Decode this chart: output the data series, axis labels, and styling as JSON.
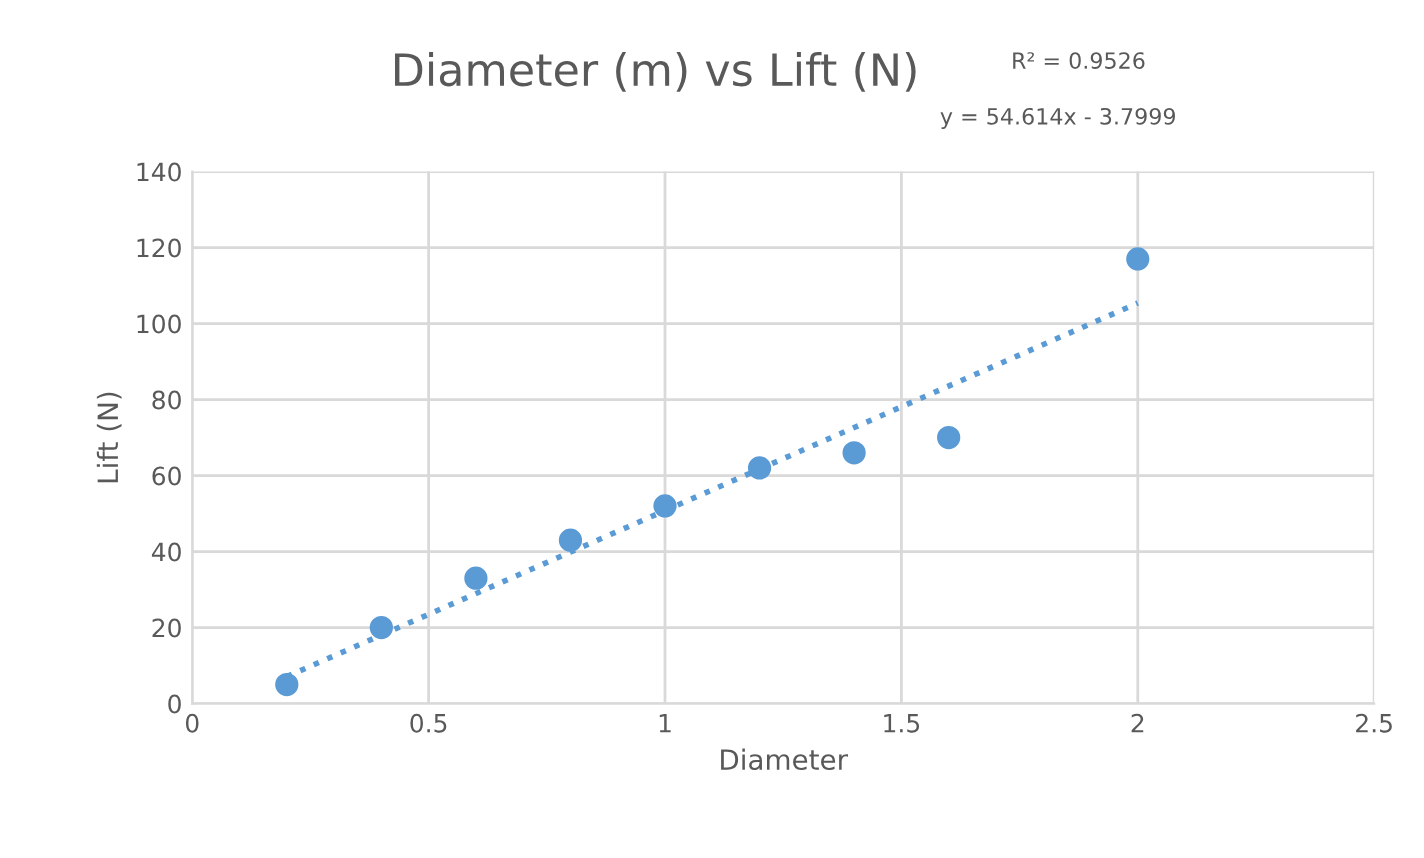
{
  "chart_data": {
    "type": "scatter",
    "title": "Diameter (m) vs Lift (N)",
    "xlabel": "Diameter",
    "ylabel": "Lift (N)",
    "annotations": [
      "R² = 0.9526",
      "y = 54.614x - 3.7999"
    ],
    "series": [
      {
        "color": "#5b9bd5",
        "marker": "circle",
        "x": [
          0.2,
          0.4,
          0.6,
          0.8,
          1.0,
          1.2,
          1.4,
          1.6,
          2.0
        ],
        "values": [
          5,
          20,
          33,
          43,
          52,
          62,
          66,
          70,
          117
        ]
      },
      {
        "type": "line",
        "color": "#5b9bd5",
        "line_style": "dotted",
        "marker": "none",
        "x": [
          0.2,
          2.0
        ],
        "values": [
          7.1,
          105.4
        ]
      }
    ],
    "xlim": [
      0,
      2.5
    ],
    "xticks": [
      0,
      0.5,
      1,
      1.5,
      2,
      2.5
    ],
    "ylim": [
      0,
      140
    ],
    "yticks": [
      0,
      20,
      40,
      60,
      80,
      100,
      120,
      140
    ],
    "grid": true
  }
}
